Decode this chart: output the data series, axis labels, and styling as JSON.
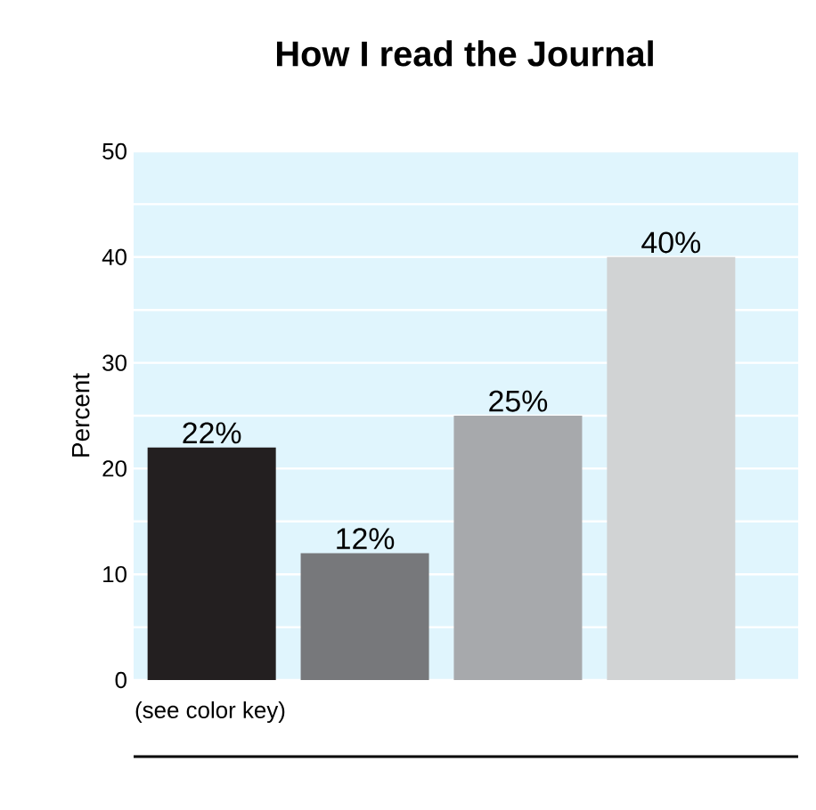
{
  "chart_data": {
    "type": "bar",
    "title": "How I read the Journal",
    "ylabel": "Percent",
    "categories": [
      null,
      null,
      null,
      null
    ],
    "values": [
      22,
      12,
      25,
      40
    ],
    "colors": [
      "#231f20",
      "#77787b",
      "#a7a9ac",
      "#d1d3d4"
    ],
    "value_labels": [
      "22%",
      "12%",
      "25%",
      "40%"
    ],
    "ylim": [
      0,
      50
    ],
    "yticks": [
      0,
      {
        "value": 5,
        "label": null
      },
      10,
      {
        "value": 15,
        "label": null
      },
      20,
      {
        "value": 25,
        "label": null
      },
      30,
      {
        "value": 35,
        "label": null
      },
      40,
      {
        "value": 45,
        "label": null
      },
      50
    ],
    "grid": "y",
    "annotations": [
      "(see color key)"
    ]
  }
}
